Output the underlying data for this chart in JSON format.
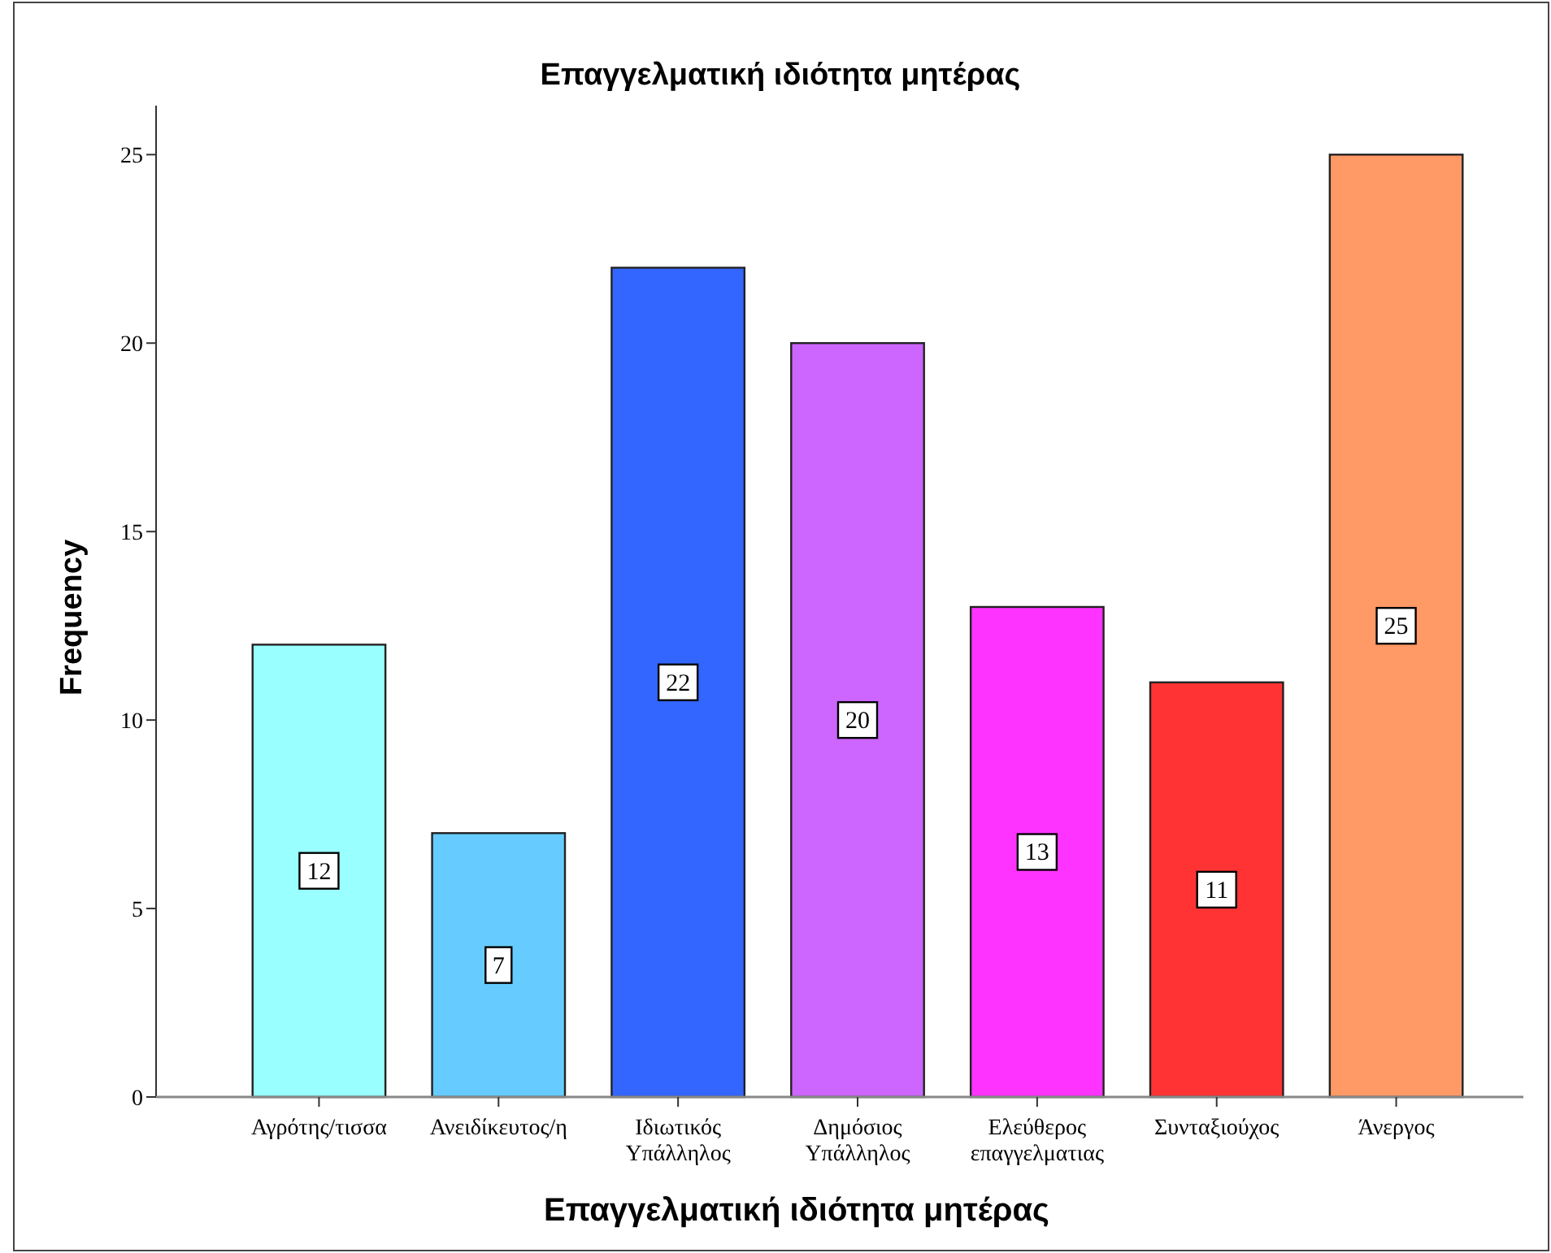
{
  "chart_data": {
    "type": "bar",
    "title": "Επαγγελματική ιδιότητα μητέρας",
    "xlabel": "Επαγγελματική ιδιότητα μητέρας",
    "ylabel": "Frequency",
    "categories": [
      "Αγρότης/τισσα",
      "Ανειδίκευτος/η",
      "Ιδιωτικός Υπάλληλος",
      "Δημόσιος Υπάλληλος",
      "Ελεύθερος επαγγελματιας",
      "Συνταξιούχος",
      "Άνεργος"
    ],
    "values": [
      12,
      7,
      22,
      20,
      13,
      11,
      25
    ],
    "colors": [
      "#99ffff",
      "#66ccff",
      "#3366ff",
      "#cc66ff",
      "#ff33ff",
      "#ff3333",
      "#ff9966"
    ],
    "ylim": [
      0,
      26.3
    ],
    "yticks": [
      0,
      5,
      10,
      15,
      20,
      25
    ],
    "grid": false,
    "data_labels": true
  }
}
